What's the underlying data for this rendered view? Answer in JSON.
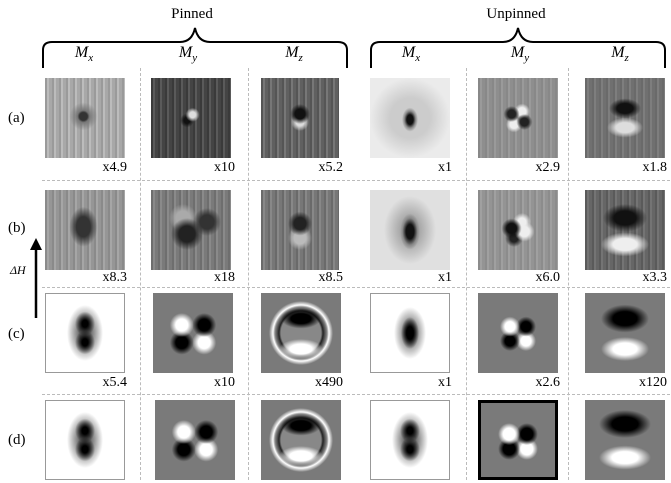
{
  "groups": {
    "pinned": "Pinned",
    "unpinned": "Unpinned"
  },
  "columns": [
    {
      "main": "M",
      "sub": "x"
    },
    {
      "main": "M",
      "sub": "y"
    },
    {
      "main": "M",
      "sub": "z"
    },
    {
      "main": "M",
      "sub": "x"
    },
    {
      "main": "M",
      "sub": "y"
    },
    {
      "main": "M",
      "sub": "z"
    }
  ],
  "rows": {
    "a": "(a)",
    "b": "(b)",
    "c": "(c)",
    "d": "(d)"
  },
  "field_label": "ΔH",
  "multipliers": {
    "a": [
      "x4.9",
      "x10",
      "x5.2",
      "x1",
      "x2.9",
      "x1.8"
    ],
    "b": [
      "x8.3",
      "x18",
      "x8.5",
      "x1",
      "x6.0",
      "x3.3"
    ],
    "c": [
      "x5.4",
      "x10",
      "x490",
      "x1",
      "x2.6",
      "x120"
    ]
  }
}
